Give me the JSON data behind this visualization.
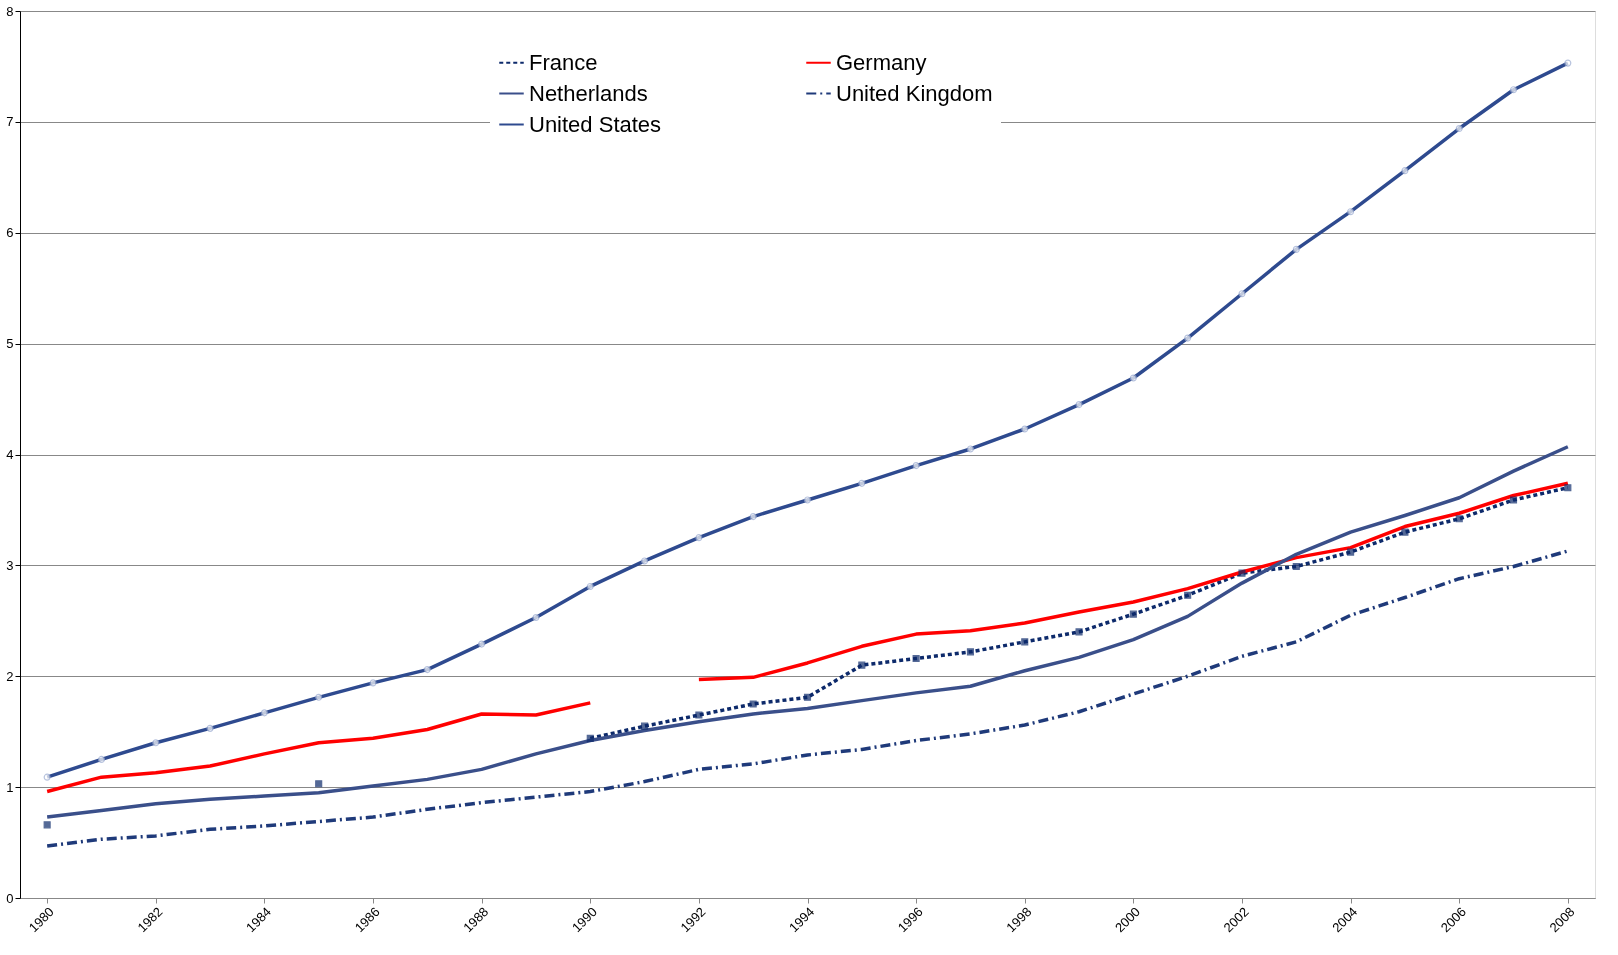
{
  "chart_data": {
    "type": "line",
    "categories": [
      "1980",
      null,
      "1982",
      null,
      "1984",
      null,
      "1986",
      null,
      "1988",
      null,
      "1990",
      null,
      "1992",
      null,
      "1994",
      null,
      "1996",
      null,
      "1998",
      null,
      "2000",
      null,
      "2002",
      null,
      "2004",
      null,
      "2006",
      null,
      "2008"
    ],
    "ylim": [
      0,
      8
    ],
    "yticks": [
      0,
      1,
      2,
      3,
      4,
      5,
      6,
      7,
      8
    ],
    "grid": "y",
    "legend": "top",
    "series": [
      {
        "name": "France",
        "color": "#0d2a6b",
        "line_style": "dotted",
        "marker": "square",
        "values": [
          0.66,
          null,
          null,
          null,
          null,
          1.03,
          null,
          null,
          null,
          null,
          1.44,
          1.55,
          1.65,
          1.75,
          1.81,
          2.1,
          2.16,
          2.22,
          2.31,
          2.4,
          2.56,
          2.73,
          2.93,
          2.99,
          3.12,
          3.3,
          3.42,
          3.59,
          3.7
        ]
      },
      {
        "name": "Germany",
        "color": "#ff0000",
        "line_style": "solid",
        "marker": "none",
        "values": [
          0.96,
          1.09,
          1.13,
          1.19,
          1.3,
          1.4,
          1.44,
          1.52,
          1.66,
          1.65,
          1.76,
          null,
          1.97,
          1.99,
          2.12,
          2.27,
          2.38,
          2.41,
          2.48,
          2.58,
          2.67,
          2.79,
          2.94,
          3.07,
          3.16,
          3.35,
          3.47,
          3.63,
          3.74
        ]
      },
      {
        "name": "Netherlands",
        "color": "#3a4f8a",
        "line_style": "solid",
        "marker": "none",
        "values": [
          0.73,
          0.79,
          0.85,
          0.89,
          0.92,
          0.95,
          1.01,
          1.07,
          1.16,
          1.3,
          1.42,
          1.51,
          1.59,
          1.66,
          1.71,
          1.78,
          1.85,
          1.91,
          2.05,
          2.17,
          2.33,
          2.54,
          2.84,
          3.1,
          3.3,
          3.45,
          3.61,
          3.85,
          4.07
        ]
      },
      {
        "name": "United Kingdom",
        "color": "#1f3a7a",
        "line_style": "dashed",
        "marker": "none",
        "values": [
          0.47,
          0.53,
          0.56,
          0.62,
          0.65,
          0.69,
          0.73,
          0.8,
          0.86,
          0.91,
          0.96,
          1.05,
          1.16,
          1.21,
          1.29,
          1.34,
          1.42,
          1.48,
          1.56,
          1.68,
          1.84,
          2.0,
          2.18,
          2.31,
          2.55,
          2.71,
          2.88,
          2.99,
          3.13
        ]
      },
      {
        "name": "United States",
        "color": "#2e4a8f",
        "line_style": "solid",
        "marker": "circle",
        "values": [
          1.09,
          1.25,
          1.4,
          1.53,
          1.67,
          1.81,
          1.94,
          2.06,
          2.29,
          2.53,
          2.81,
          3.04,
          3.25,
          3.44,
          3.59,
          3.74,
          3.9,
          4.05,
          4.23,
          4.45,
          4.69,
          5.05,
          5.45,
          5.85,
          6.19,
          6.56,
          6.94,
          7.29,
          7.53
        ]
      }
    ]
  }
}
